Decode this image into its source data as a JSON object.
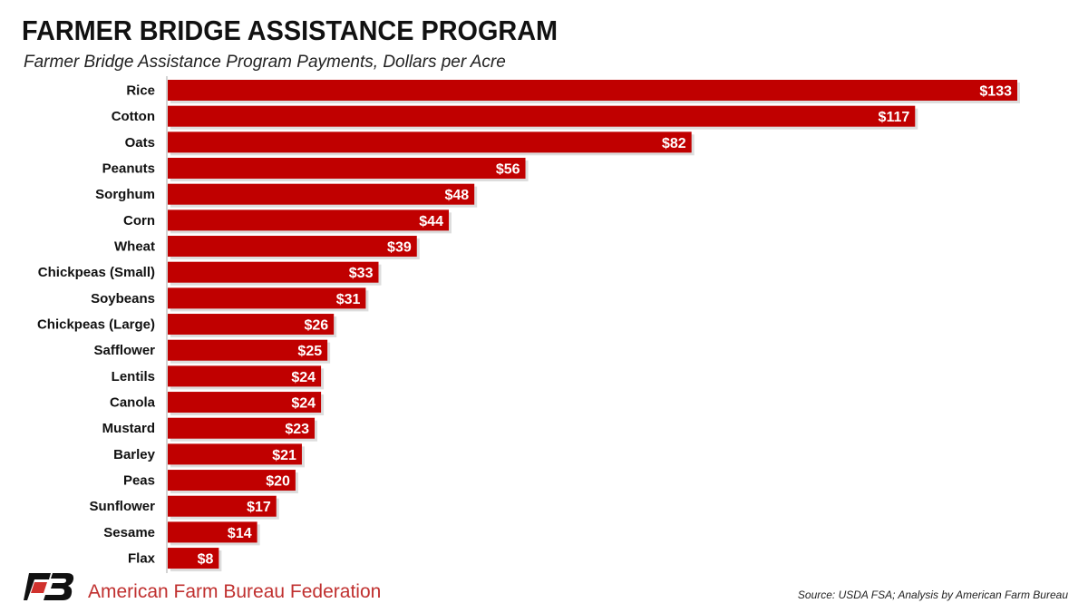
{
  "chart_data": {
    "type": "bar",
    "orientation": "horizontal",
    "title": "FARMER BRIDGE ASSISTANCE PROGRAM",
    "subtitle": "Farmer Bridge Assistance Program Payments, Dollars per Acre",
    "categories": [
      "Rice",
      "Cotton",
      "Oats",
      "Peanuts",
      "Sorghum",
      "Corn",
      "Wheat",
      "Chickpeas (Small)",
      "Soybeans",
      "Chickpeas (Large)",
      "Safflower",
      "Lentils",
      "Canola",
      "Mustard",
      "Barley",
      "Peas",
      "Sunflower",
      "Sesame",
      "Flax"
    ],
    "values": [
      133,
      117,
      82,
      56,
      48,
      44,
      39,
      33,
      31,
      26,
      25,
      24,
      24,
      23,
      21,
      20,
      17,
      14,
      8
    ],
    "value_labels": [
      "$133",
      "$117",
      "$82",
      "$56",
      "$48",
      "$44",
      "$39",
      "$33",
      "$31",
      "$26",
      "$25",
      "$24",
      "$24",
      "$23",
      "$21",
      "$20",
      "$17",
      "$14",
      "$8"
    ],
    "xlim": [
      0,
      133
    ],
    "grid": false,
    "bar_color": "#c00000"
  },
  "footer": {
    "org": "American Farm Bureau Federation",
    "source": "Source: USDA FSA; Analysis by American Farm Bureau"
  },
  "colors": {
    "brand_red": "#c0302f",
    "logo_black": "#111111"
  }
}
